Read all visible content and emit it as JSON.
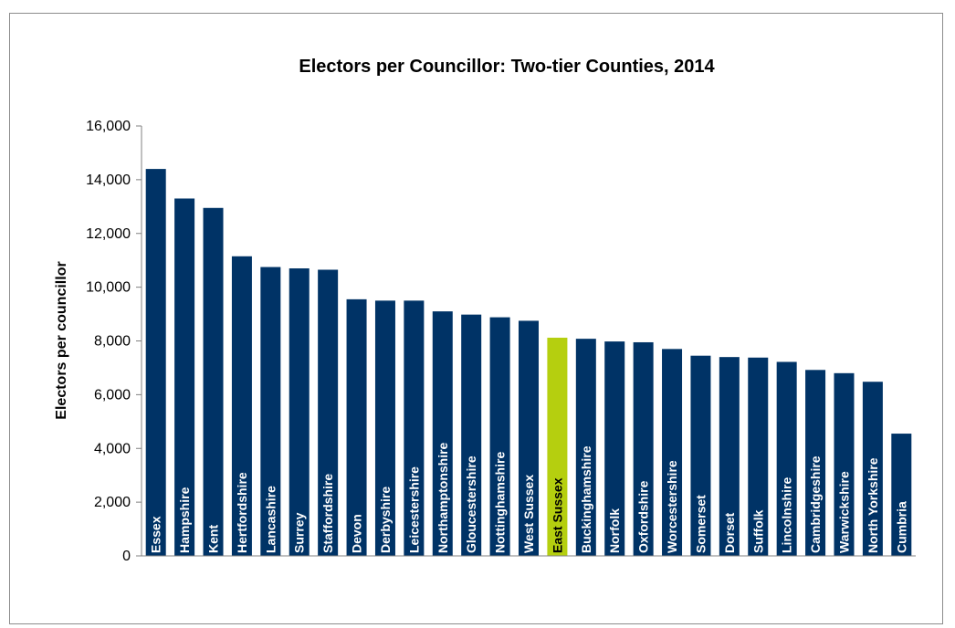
{
  "chart_data": {
    "type": "bar",
    "title": "Electors per Councillor: Two-tier Counties, 2014",
    "xlabel": "",
    "ylabel": "Electors per councillor",
    "ylim": [
      0,
      16000
    ],
    "yticks": [
      0,
      2000,
      4000,
      6000,
      8000,
      10000,
      12000,
      14000,
      16000
    ],
    "ytick_labels": [
      "0",
      "2,000",
      "4,000",
      "6,000",
      "8,000",
      "10,000",
      "12,000",
      "14,000",
      "16,000"
    ],
    "grid": false,
    "legend": "none",
    "labels_position": "inside-bar-vertical",
    "categories": [
      "Essex",
      "Hampshire",
      "Kent",
      "Hertfordshire",
      "Lancashire",
      "Surrey",
      "Staffordshire",
      "Devon",
      "Derbyshire",
      "Leicestershire",
      "Northamptonshire",
      "Gloucestershire",
      "Nottinghamshire",
      "West Sussex",
      "East Sussex",
      "Buckinghamshire",
      "Norfolk",
      "Oxfordshire",
      "Worcestershire",
      "Somerset",
      "Dorset",
      "Suffolk",
      "Lincolnshire",
      "Cambridgeshire",
      "Warwickshire",
      "North Yorkshire",
      "Cumbria"
    ],
    "values": [
      14400,
      13300,
      12950,
      11150,
      10750,
      10700,
      10650,
      9550,
      9500,
      9500,
      9100,
      8980,
      8880,
      8750,
      8120,
      8080,
      7980,
      7950,
      7700,
      7450,
      7400,
      7380,
      7220,
      6920,
      6800,
      6480,
      4550
    ],
    "highlight": "East Sussex",
    "colors": {
      "bar": "#003366",
      "highlight": "#b5cf0f",
      "label_on_bar": "#ffffff",
      "label_on_highlight": "#000000",
      "axis": "#808080"
    }
  }
}
